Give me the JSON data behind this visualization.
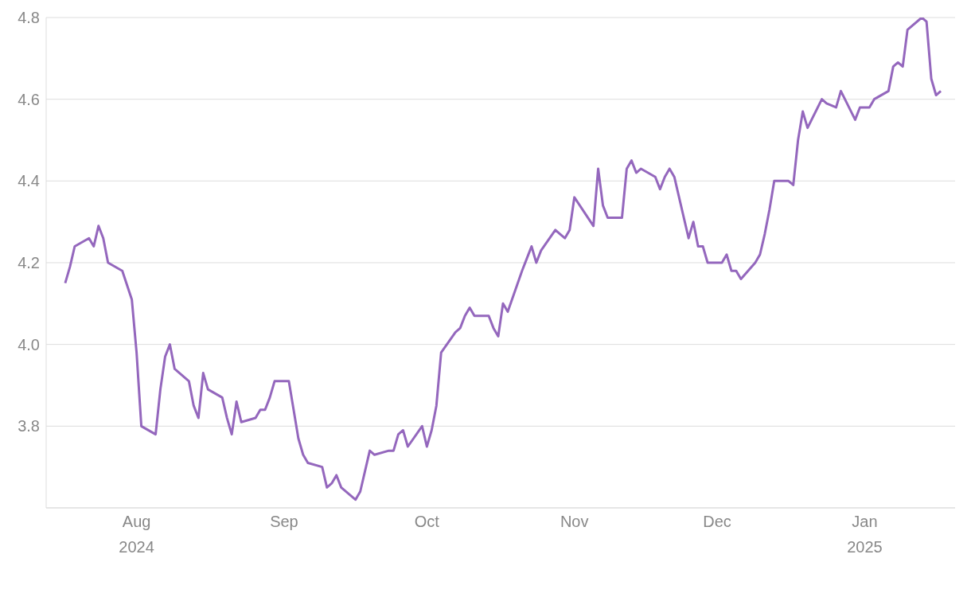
{
  "chart_data": {
    "type": "line",
    "x": [
      "2024-07-17",
      "2024-07-18",
      "2024-07-19",
      "2024-07-22",
      "2024-07-23",
      "2024-07-24",
      "2024-07-25",
      "2024-07-26",
      "2024-07-29",
      "2024-07-31",
      "2024-08-01",
      "2024-08-02",
      "2024-08-05",
      "2024-08-06",
      "2024-08-07",
      "2024-08-08",
      "2024-08-09",
      "2024-08-12",
      "2024-08-13",
      "2024-08-14",
      "2024-08-15",
      "2024-08-16",
      "2024-08-19",
      "2024-08-20",
      "2024-08-21",
      "2024-08-22",
      "2024-08-23",
      "2024-08-26",
      "2024-08-27",
      "2024-08-28",
      "2024-08-29",
      "2024-08-30",
      "2024-09-02",
      "2024-09-03",
      "2024-09-04",
      "2024-09-05",
      "2024-09-06",
      "2024-09-09",
      "2024-09-10",
      "2024-09-11",
      "2024-09-12",
      "2024-09-13",
      "2024-09-16",
      "2024-09-17",
      "2024-09-18",
      "2024-09-19",
      "2024-09-20",
      "2024-09-23",
      "2024-09-24",
      "2024-09-25",
      "2024-09-26",
      "2024-09-27",
      "2024-09-30",
      "2024-10-01",
      "2024-10-02",
      "2024-10-03",
      "2024-10-04",
      "2024-10-07",
      "2024-10-08",
      "2024-10-09",
      "2024-10-10",
      "2024-10-11",
      "2024-10-14",
      "2024-10-15",
      "2024-10-16",
      "2024-10-17",
      "2024-10-18",
      "2024-10-21",
      "2024-10-22",
      "2024-10-23",
      "2024-10-24",
      "2024-10-25",
      "2024-10-28",
      "2024-10-29",
      "2024-10-30",
      "2024-10-31",
      "2024-11-01",
      "2024-11-05",
      "2024-11-06",
      "2024-11-07",
      "2024-11-08",
      "2024-11-11",
      "2024-11-12",
      "2024-11-13",
      "2024-11-14",
      "2024-11-15",
      "2024-11-18",
      "2024-11-19",
      "2024-11-20",
      "2024-11-21",
      "2024-11-22",
      "2024-11-25",
      "2024-11-26",
      "2024-11-27",
      "2024-11-28",
      "2024-11-29",
      "2024-12-02",
      "2024-12-03",
      "2024-12-04",
      "2024-12-05",
      "2024-12-06",
      "2024-12-09",
      "2024-12-10",
      "2024-12-11",
      "2024-12-12",
      "2024-12-13",
      "2024-12-16",
      "2024-12-17",
      "2024-12-18",
      "2024-12-19",
      "2024-12-20",
      "2024-12-23",
      "2024-12-24",
      "2024-12-26",
      "2024-12-27",
      "2024-12-30",
      "2024-12-31",
      "2025-01-02",
      "2025-01-03",
      "2025-01-06",
      "2025-01-07",
      "2025-01-08",
      "2025-01-09",
      "2025-01-10",
      "2025-01-13",
      "2025-01-14",
      "2025-01-15",
      "2025-01-16",
      "2025-01-17"
    ],
    "series": [
      {
        "color": "#9467bd",
        "values": [
          4.15,
          4.19,
          4.24,
          4.26,
          4.24,
          4.29,
          4.26,
          4.2,
          4.18,
          4.11,
          3.98,
          3.8,
          3.78,
          3.89,
          3.97,
          4.0,
          3.94,
          3.91,
          3.85,
          3.82,
          3.93,
          3.89,
          3.87,
          3.82,
          3.78,
          3.86,
          3.81,
          3.82,
          3.84,
          3.84,
          3.87,
          3.91,
          3.91,
          3.84,
          3.77,
          3.73,
          3.71,
          3.7,
          3.65,
          3.66,
          3.68,
          3.65,
          3.62,
          3.64,
          3.69,
          3.74,
          3.73,
          3.74,
          3.74,
          3.78,
          3.79,
          3.75,
          3.8,
          3.75,
          3.79,
          3.85,
          3.98,
          4.03,
          4.04,
          4.07,
          4.09,
          4.07,
          4.07,
          4.04,
          4.02,
          4.1,
          4.08,
          4.18,
          4.21,
          4.24,
          4.2,
          4.23,
          4.28,
          4.27,
          4.26,
          4.28,
          4.36,
          4.29,
          4.43,
          4.34,
          4.31,
          4.31,
          4.43,
          4.45,
          4.42,
          4.43,
          4.41,
          4.38,
          4.41,
          4.43,
          4.41,
          4.26,
          4.3,
          4.24,
          4.24,
          4.2,
          4.2,
          4.22,
          4.18,
          4.18,
          4.16,
          4.2,
          4.22,
          4.27,
          4.33,
          4.4,
          4.4,
          4.39,
          4.5,
          4.57,
          4.53,
          4.6,
          4.59,
          4.58,
          4.62,
          4.55,
          4.58,
          4.58,
          4.6,
          4.62,
          4.68,
          4.69,
          4.68,
          4.77,
          4.8,
          4.79,
          4.65,
          4.61,
          4.62
        ]
      }
    ],
    "xlim": [
      "2024-07-13",
      "2025-01-20"
    ],
    "xticks": [
      {
        "value": "2024-08-01",
        "label": "Aug 2024"
      },
      {
        "value": "2024-09-01",
        "label": "Sep"
      },
      {
        "value": "2024-10-01",
        "label": "Oct"
      },
      {
        "value": "2024-11-01",
        "label": "Nov"
      },
      {
        "value": "2024-12-01",
        "label": "Dec"
      },
      {
        "value": "2025-01-01",
        "label": "Jan 2025"
      }
    ],
    "ylim": [
      3.6,
      4.8
    ],
    "yticks": [
      3.8,
      {
        "value": 4,
        "label": "4.0"
      },
      4.2,
      4.4,
      4.6,
      4.8
    ],
    "grid": "y",
    "marker": "none",
    "line_style": "solid"
  }
}
